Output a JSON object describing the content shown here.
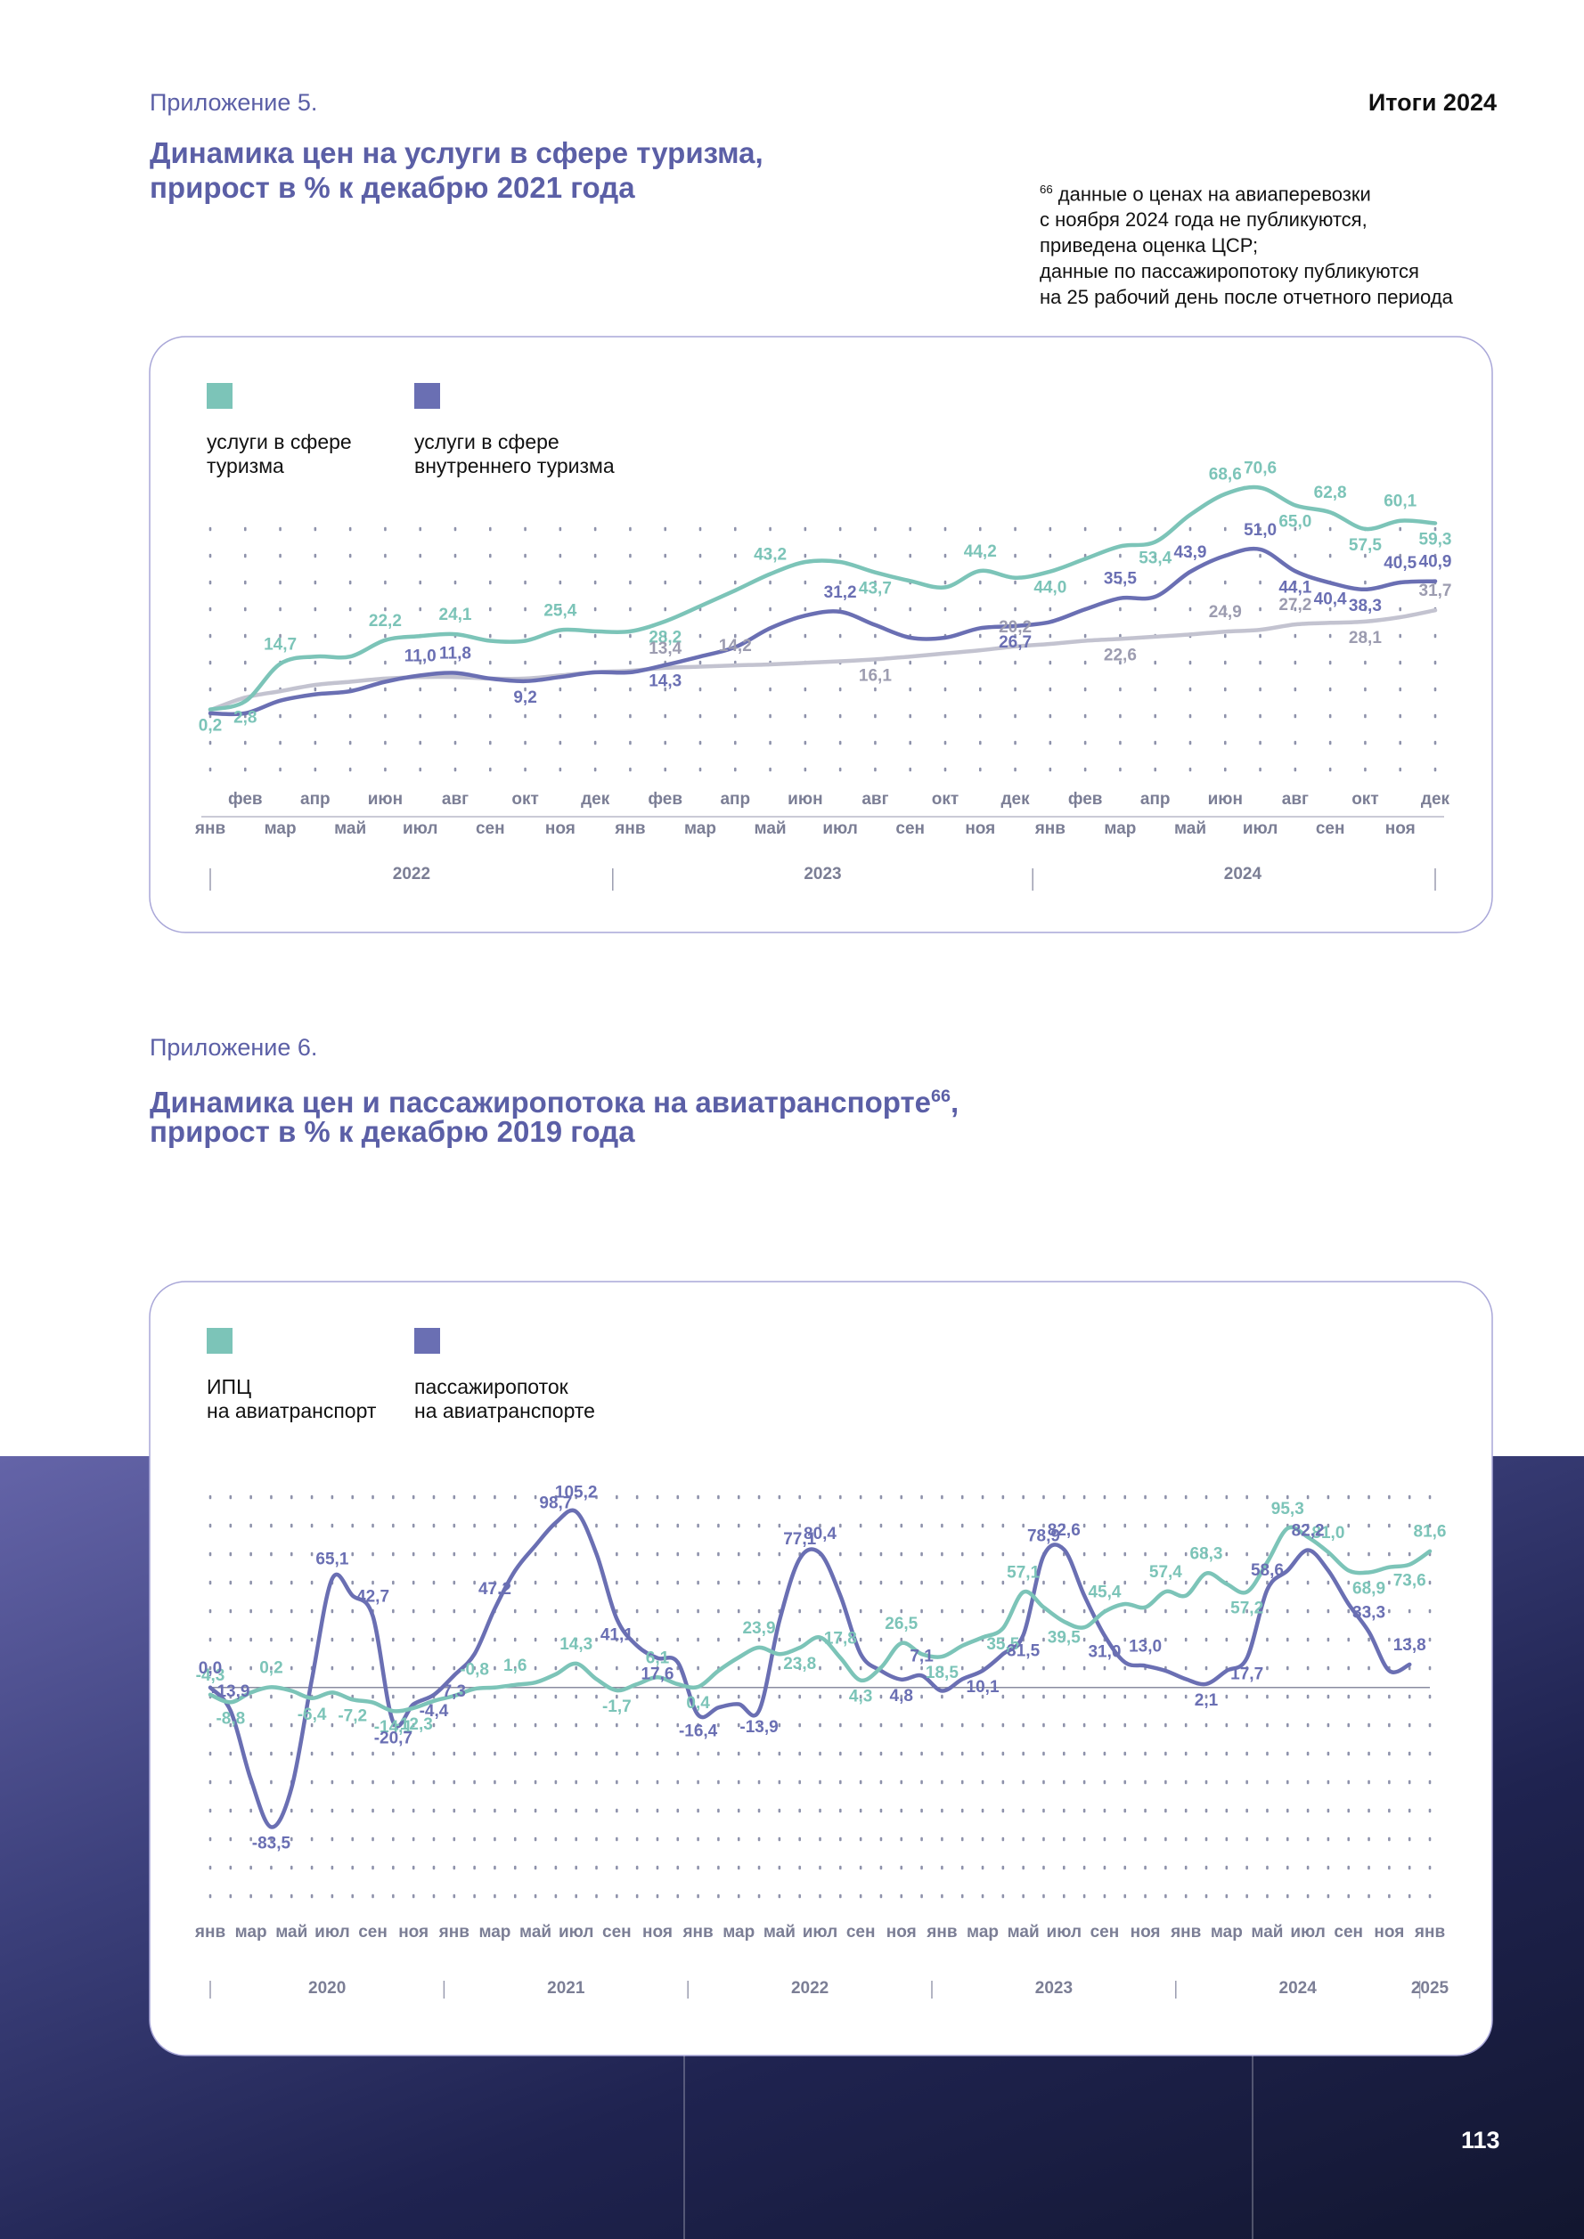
{
  "page": {
    "report": "Итоги 2024",
    "page_number": "113"
  },
  "footnote": {
    "marker": "66",
    "lines": [
      "данные о ценах на авиаперевозки",
      "с ноября 2024 года не публикуются,",
      "приведена оценка ЦСР;",
      "данные по пассажиропотоку публикуются",
      "на 25 рабочий день после отчетного периода"
    ]
  },
  "chart_data": [
    {
      "type": "line",
      "label": "Приложение 5.",
      "title": "Динамика цен на услуги в сфере туризма,",
      "subtitle": "прирост в % к декабрю 2021 года",
      "categories": [
        "янв",
        "фев",
        "мар",
        "апр",
        "май",
        "июн",
        "июл",
        "авг",
        "сен",
        "окт",
        "ноя",
        "дек",
        "янв",
        "фев",
        "мар",
        "апр",
        "май",
        "июн",
        "июл",
        "авг",
        "сен",
        "окт",
        "ноя",
        "дек",
        "янв",
        "фев",
        "мар",
        "апр",
        "май",
        "июн",
        "июл",
        "авг",
        "сен",
        "окт",
        "ноя",
        "дек"
      ],
      "years": [
        "2022",
        "2023",
        "2024"
      ],
      "ylim": [
        -5,
        75
      ],
      "series": [
        {
          "name": "услуги в сфере\nтуризма",
          "color": "#7cc4b8",
          "values": [
            0.2,
            2.8,
            14.7,
            17,
            17,
            22.2,
            23.5,
            24.1,
            22,
            22,
            25.4,
            25,
            25,
            28.2,
            33,
            38,
            43.2,
            47,
            47,
            43.7,
            41,
            39,
            44.2,
            42,
            44.0,
            48,
            52,
            53.4,
            62,
            68.6,
            70.6,
            65.0,
            62.8,
            57.5,
            60.1,
            59.3
          ],
          "value_labels": [
            "0,2",
            "2,8",
            "14,7",
            null,
            null,
            "22,2",
            null,
            "24,1",
            null,
            null,
            "25,4",
            null,
            null,
            "28,2",
            null,
            null,
            "43,2",
            null,
            null,
            "43,7",
            null,
            null,
            "44,2",
            null,
            "44,0",
            null,
            null,
            "53,4",
            null,
            "68,6",
            "70,6",
            "65,0",
            "62,8",
            "57,5",
            "60,1",
            "59,3"
          ]
        },
        {
          "name": "услуги в сфере\nвнутреннего туризма",
          "color": "#6a6fb3",
          "values": [
            -1,
            -1,
            3,
            5,
            6,
            9,
            11.0,
            11.8,
            10,
            9.2,
            10.5,
            12,
            12,
            14.3,
            17,
            20,
            26,
            30,
            31.2,
            27,
            23,
            23,
            26,
            26.7,
            28,
            32,
            35.5,
            36,
            43.9,
            49,
            51.0,
            44.1,
            40.4,
            38.3,
            40.5,
            40.9
          ],
          "value_labels": [
            null,
            null,
            null,
            null,
            null,
            null,
            "11,0",
            "11,8",
            null,
            "9,2",
            null,
            null,
            null,
            "14,3",
            null,
            null,
            null,
            null,
            "31,2",
            null,
            null,
            null,
            null,
            "26,7",
            null,
            null,
            "35,5",
            null,
            "43,9",
            null,
            "51,0",
            "44,1",
            "40,4",
            "38,3",
            "40,5",
            "40,9"
          ]
        },
        {
          "color": "#c3c3d0",
          "values": [
            0,
            4,
            6,
            8,
            9,
            10,
            10.5,
            10.5,
            10,
            10,
            11,
            12,
            12.5,
            13.4,
            13.8,
            14.2,
            14.5,
            15,
            15.5,
            16.1,
            17,
            18,
            19,
            20.2,
            21,
            22,
            22.6,
            23.3,
            24,
            24.9,
            25.5,
            27.2,
            27.7,
            28.1,
            29.5,
            31.7
          ],
          "value_labels": [
            null,
            null,
            null,
            null,
            null,
            null,
            null,
            null,
            null,
            null,
            null,
            null,
            null,
            "13,4",
            null,
            "14,2",
            null,
            null,
            null,
            "16,1",
            null,
            null,
            null,
            "20,2",
            null,
            null,
            "22,6",
            null,
            null,
            "24,9",
            null,
            "27,2",
            null,
            "28,1",
            null,
            "31,7"
          ]
        }
      ]
    },
    {
      "type": "line",
      "label": "Приложение 6.",
      "title": "Динамика цен и пассажиропотока на авиатранспорте",
      "title_marker": "66",
      "title_suffix": ",",
      "subtitle": "прирост в % к декабрю 2019 года",
      "categories": [
        "янв",
        null,
        "мар",
        null,
        "май",
        null,
        "июл",
        null,
        "сен",
        null,
        "ноя",
        null,
        "янв",
        null,
        "мар",
        null,
        "май",
        null,
        "июл",
        null,
        "сен",
        null,
        "ноя",
        null,
        "янв",
        null,
        "мар",
        null,
        "май",
        null,
        "июл",
        null,
        "сен",
        null,
        "ноя",
        null,
        "янв",
        null,
        "мар",
        null,
        "май",
        null,
        "июл",
        null,
        "сен",
        null,
        "ноя",
        null,
        "янв",
        null,
        "мар",
        null,
        "май",
        null,
        "июл",
        null,
        "сен",
        null,
        "ноя",
        null,
        "янв"
      ],
      "years": [
        "2020",
        "2021",
        "2022",
        "2023",
        "2024",
        "2025"
      ],
      "ylim": [
        -95,
        115
      ],
      "series": [
        {
          "name": "ИПЦ\nна авиатранспорт",
          "color": "#7cc4b8",
          "values": [
            -4.3,
            -8.8,
            -3,
            0.2,
            -2,
            -6.4,
            -3,
            -7.2,
            -9,
            -14.1,
            -12.3,
            -8,
            -5,
            -0.8,
            0,
            1.6,
            3,
            8,
            14.3,
            5,
            -1.7,
            2,
            6.1,
            2,
            0.4,
            10,
            18,
            23.9,
            20,
            23.8,
            30,
            17.8,
            4.3,
            12,
            26.5,
            20,
            18.5,
            25,
            30,
            35.5,
            57.1,
            48,
            39.5,
            36,
            45.4,
            50,
            48,
            57.4,
            55,
            68.3,
            62,
            57.2,
            75,
            95.3,
            90,
            81.0,
            70,
            68.9,
            72,
            73.6,
            81.6
          ],
          "value_labels": [
            "-4,3",
            "-8,8",
            null,
            "0,2",
            null,
            "-6,4",
            null,
            "-7,2",
            null,
            "-14,1",
            "-12,3",
            null,
            null,
            "-0,8",
            null,
            "1,6",
            null,
            null,
            "14,3",
            null,
            "-1,7",
            null,
            "6,1",
            null,
            "0,4",
            null,
            null,
            "23,9",
            null,
            "23,8",
            null,
            "17,8",
            "4,3",
            null,
            "26,5",
            null,
            "18,5",
            null,
            null,
            "35,5",
            "57,1",
            null,
            "39,5",
            null,
            "45,4",
            null,
            null,
            "57,4",
            null,
            "68,3",
            null,
            "57,2",
            null,
            "95,3",
            null,
            "81,0",
            null,
            "68,9",
            null,
            "73,6",
            "81,6"
          ]
        },
        {
          "name": "пассажиропоток\nна авиатранспорте",
          "color": "#6a6fb3",
          "values": [
            0,
            -13.9,
            -55,
            -83.5,
            -60,
            5,
            65.1,
            55,
            42.7,
            -20.7,
            -10,
            -4.4,
            7.3,
            20,
            47.2,
            70,
            85,
            98.7,
            105.2,
            80,
            41.1,
            25,
            17.6,
            15,
            -16.4,
            -12,
            -10,
            -13.9,
            40,
            77.1,
            80.4,
            55,
            20,
            10,
            4.8,
            7.1,
            -2,
            5,
            10.1,
            20,
            31.5,
            78.9,
            82.6,
            55,
            31.0,
            15,
            13.0,
            10,
            5,
            2.1,
            10,
            17.7,
            58.6,
            70,
            82.2,
            70,
            50,
            33.3,
            10,
            13.8,
            null
          ],
          "value_labels": [
            "0,0",
            "-13,9",
            null,
            "-83,5",
            null,
            null,
            "65,1",
            null,
            "42,7",
            "-20,7",
            null,
            "-4,4",
            "7,3",
            null,
            "47,2",
            null,
            null,
            "98,7",
            "105,2",
            null,
            "41,1",
            null,
            "17,6",
            null,
            "-16,4",
            null,
            null,
            "-13,9",
            null,
            "77,1",
            "80,4",
            null,
            null,
            null,
            "4,8",
            "7,1",
            null,
            null,
            "10,1",
            null,
            "31,5",
            "78,9",
            "82,6",
            null,
            "31,0",
            null,
            "13,0",
            null,
            null,
            "2,1",
            null,
            "17,7",
            "58,6",
            null,
            "82,2",
            null,
            null,
            "33,3",
            null,
            "13,8",
            null
          ]
        }
      ]
    }
  ]
}
